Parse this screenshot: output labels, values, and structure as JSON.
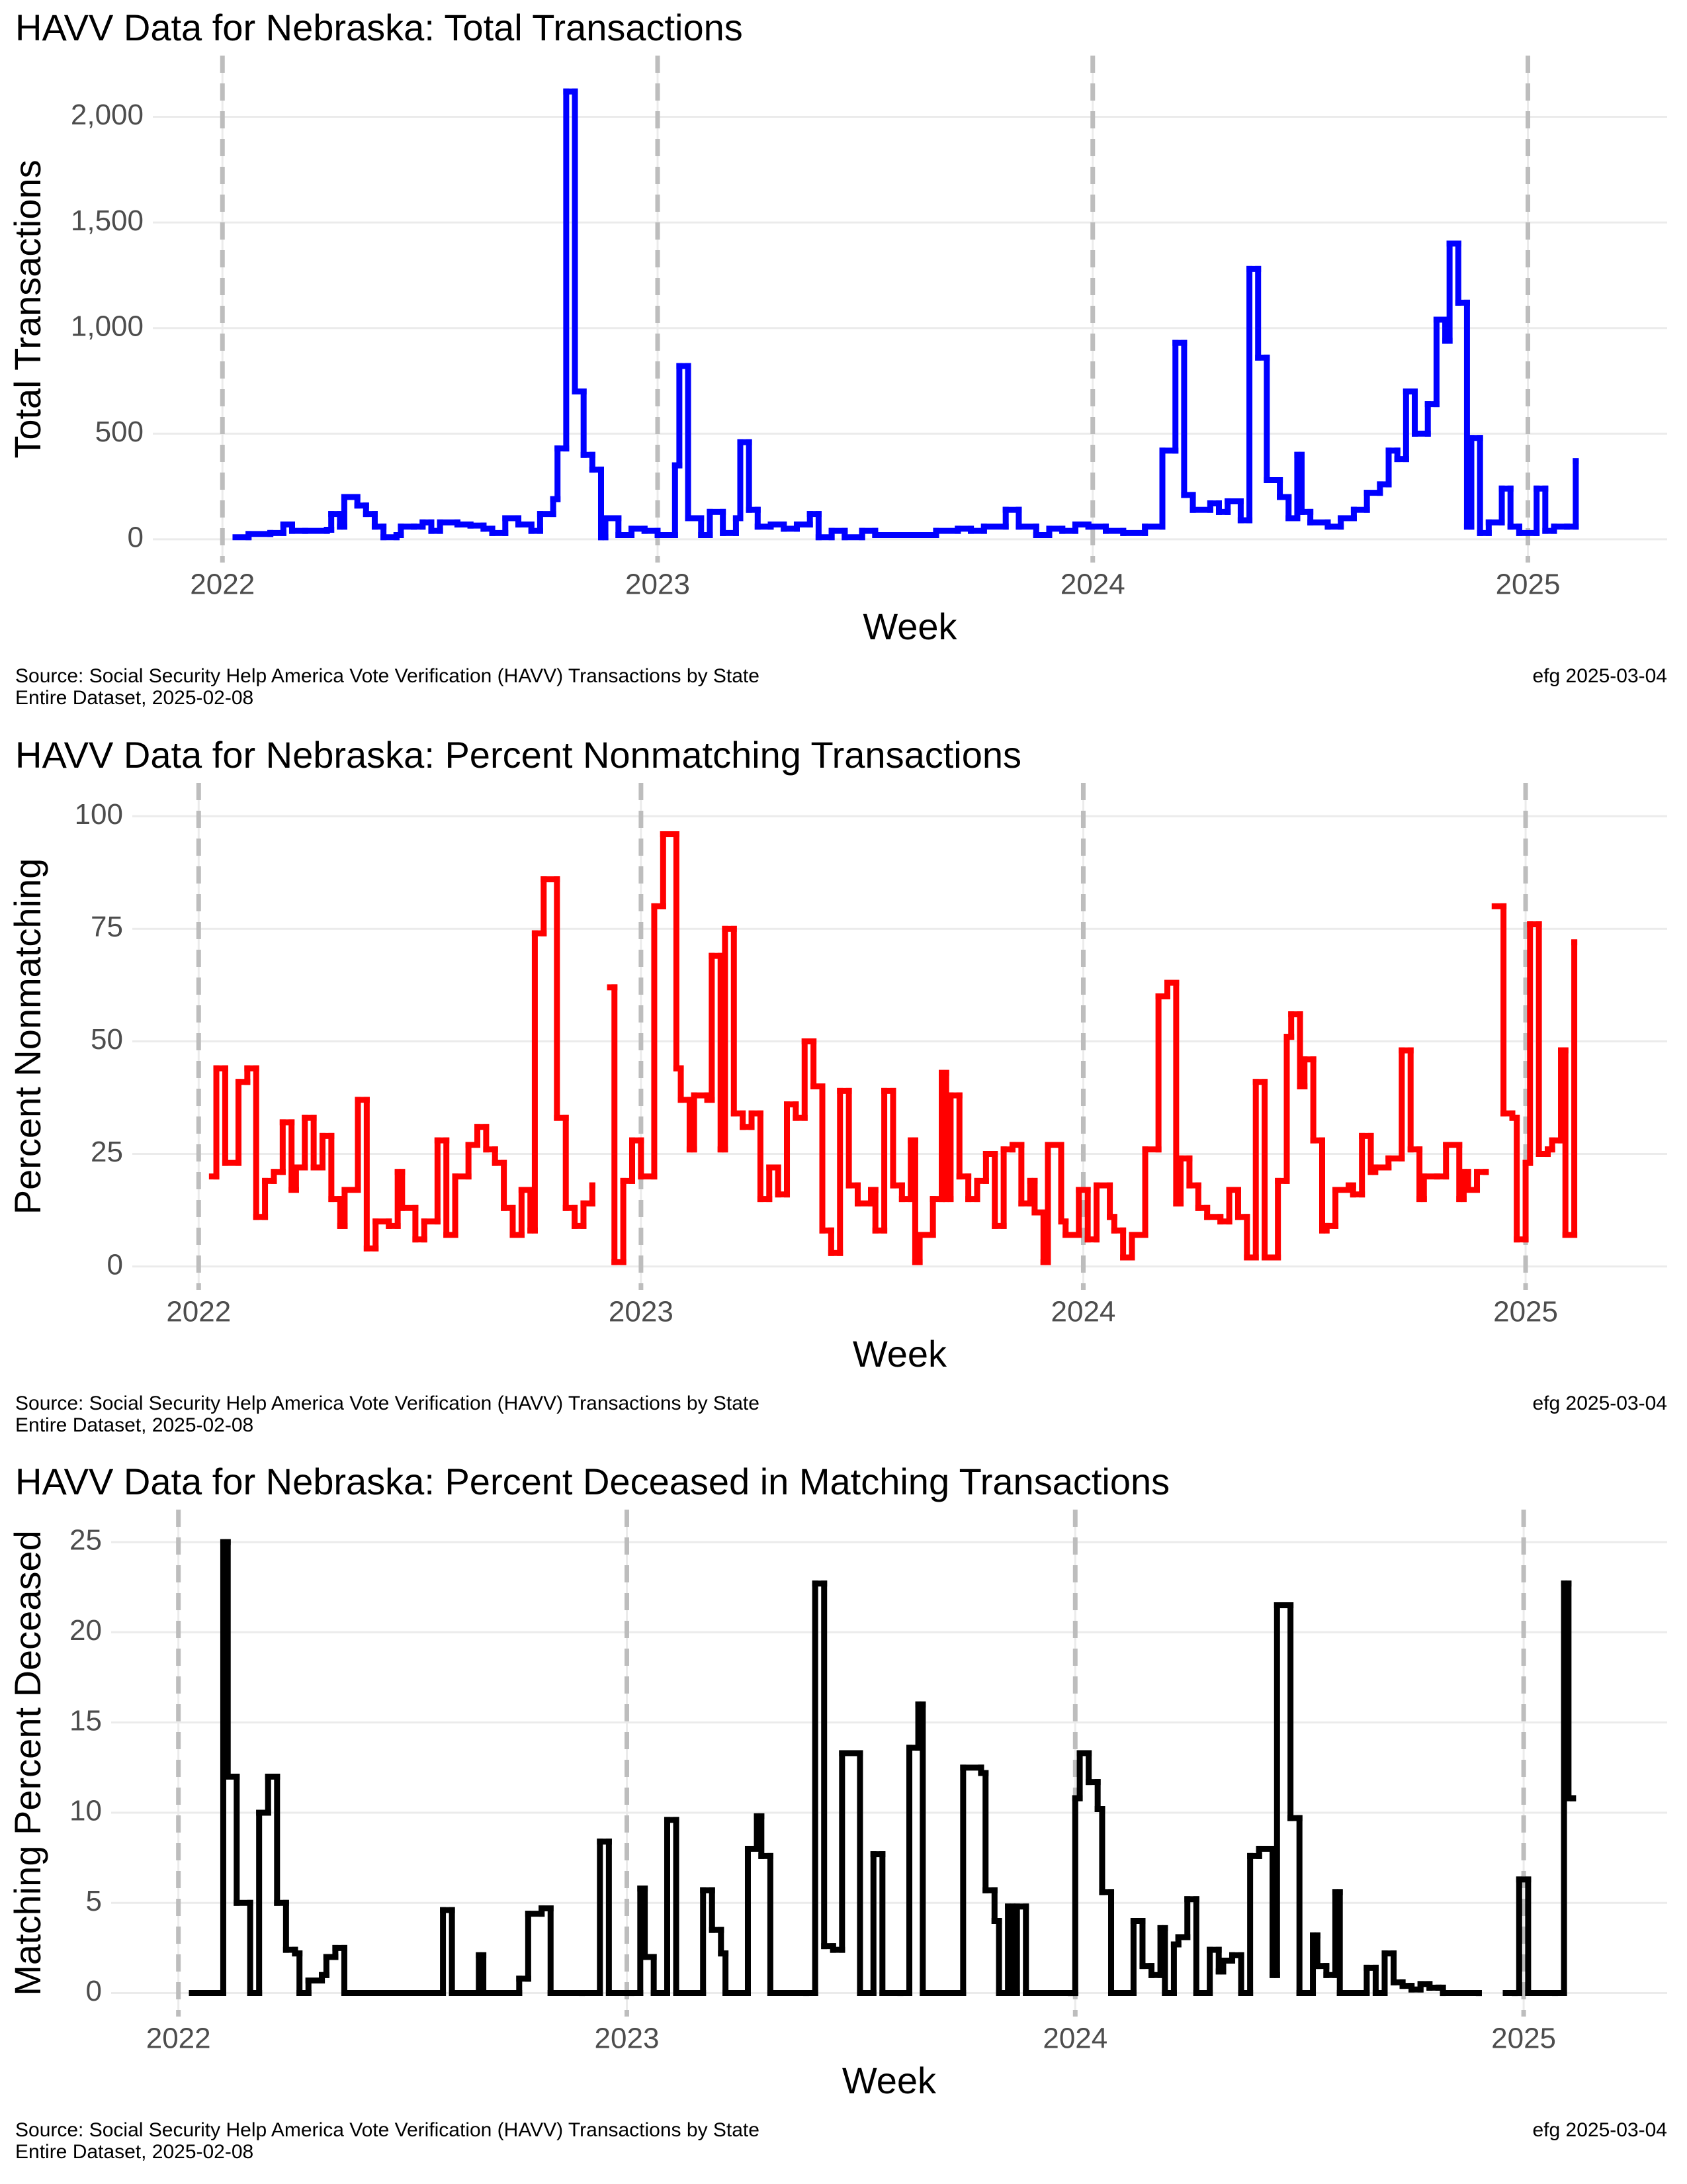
{
  "chart_data": [
    {
      "type": "step",
      "title": "HAVV Data for Nebraska:  Total Transactions",
      "xlabel": "Week",
      "ylabel": "Total Transactions",
      "source": [
        "Source:  Social Security Help America Vote Verification (HAVV) Transactions by State",
        "Entire Dataset, 2025-02-08"
      ],
      "credit": "efg 2025-03-04",
      "color": "#0000ff",
      "grid": true,
      "xlim": [
        2021.84,
        2025.32
      ],
      "xticks": [
        2022,
        2023,
        2024,
        2025
      ],
      "ylim": [
        -110,
        2290
      ],
      "yticks": [
        0,
        500,
        {
          "value": 1000,
          "label": "1,000"
        },
        {
          "value": 1500,
          "label": "1,500"
        },
        {
          "value": 2000,
          "label": "2,000"
        }
      ],
      "x": [
        2022.03,
        2022.06,
        2022.11,
        2022.14,
        2022.16,
        2022.19,
        2022.24,
        2022.25,
        2022.27,
        2022.28,
        2022.31,
        2022.33,
        2022.35,
        2022.37,
        2022.4,
        2022.41,
        2022.44,
        2022.46,
        2022.48,
        2022.5,
        2022.54,
        2022.57,
        2022.6,
        2022.62,
        2022.65,
        2022.68,
        2022.71,
        2022.73,
        2022.76,
        2022.77,
        2022.79,
        2022.81,
        2022.83,
        2022.85,
        2022.87,
        2022.88,
        2022.91,
        2022.94,
        2022.97,
        2023.0,
        2023.04,
        2023.05,
        2023.07,
        2023.1,
        2023.12,
        2023.15,
        2023.18,
        2023.19,
        2023.21,
        2023.23,
        2023.26,
        2023.29,
        2023.32,
        2023.35,
        2023.37,
        2023.4,
        2023.43,
        2023.47,
        2023.5,
        2023.55,
        2023.59,
        2023.64,
        2023.69,
        2023.72,
        2023.75,
        2023.8,
        2023.83,
        2023.87,
        2023.9,
        2023.93,
        2023.96,
        2023.99,
        2024.03,
        2024.07,
        2024.12,
        2024.16,
        2024.19,
        2024.21,
        2024.23,
        2024.27,
        2024.29,
        2024.31,
        2024.34,
        2024.36,
        2024.38,
        2024.4,
        2024.43,
        2024.45,
        2024.47,
        2024.48,
        2024.5,
        2024.54,
        2024.57,
        2024.6,
        2024.63,
        2024.66,
        2024.68,
        2024.7,
        2024.72,
        2024.74,
        2024.77,
        2024.79,
        2024.81,
        2024.82,
        2024.84,
        2024.86,
        2024.87,
        2024.89,
        2024.91,
        2024.94,
        2024.96,
        2024.98,
        2025.02,
        2025.04,
        2025.06,
        2025.09,
        2025.11
      ],
      "values": [
        10,
        25,
        30,
        70,
        40,
        40,
        45,
        120,
        60,
        200,
        160,
        120,
        60,
        10,
        20,
        60,
        60,
        80,
        40,
        80,
        70,
        65,
        50,
        30,
        100,
        70,
        40,
        120,
        190,
        430,
        2120,
        700,
        400,
        330,
        10,
        100,
        20,
        50,
        40,
        20,
        350,
        820,
        100,
        20,
        130,
        30,
        100,
        460,
        140,
        60,
        70,
        50,
        70,
        120,
        10,
        40,
        10,
        40,
        20,
        20,
        20,
        40,
        50,
        40,
        60,
        140,
        60,
        20,
        50,
        40,
        70,
        60,
        40,
        30,
        60,
        420,
        930,
        210,
        140,
        170,
        130,
        180,
        90,
        1280,
        860,
        280,
        200,
        100,
        400,
        130,
        80,
        60,
        100,
        140,
        220,
        260,
        420,
        380,
        700,
        500,
        640,
        1040,
        940,
        1400,
        1120,
        60,
        480,
        30,
        80,
        240,
        60,
        30,
        240,
        40,
        60,
        60,
        370
      ]
    },
    {
      "type": "step",
      "title": "HAVV Data for Nebraska:  Percent Nonmatching Transactions",
      "xlabel": "Week",
      "ylabel": "Percent Nonmatching",
      "source": [
        "Source:  Social Security Help America Vote Verification (HAVV) Transactions by State",
        "Entire Dataset, 2025-02-08"
      ],
      "credit": "efg 2025-03-04",
      "color": "#ff0000",
      "grid": true,
      "xlim": [
        2021.85,
        2025.32
      ],
      "xticks": [
        2022,
        2023,
        2024,
        2025
      ],
      "ylim": [
        -5.2,
        107.4
      ],
      "yticks": [
        0,
        25,
        50,
        75,
        100
      ],
      "x": [
        2022.03,
        2022.04,
        2022.06,
        2022.09,
        2022.11,
        2022.13,
        2022.15,
        2022.17,
        2022.19,
        2022.21,
        2022.22,
        2022.24,
        2022.26,
        2022.28,
        2022.3,
        2022.32,
        2022.33,
        2022.36,
        2022.38,
        2022.4,
        2022.43,
        2022.45,
        2022.46,
        2022.49,
        2022.51,
        2022.54,
        2022.56,
        2022.58,
        2022.61,
        2022.63,
        2022.65,
        2022.67,
        2022.69,
        2022.71,
        2022.73,
        2022.75,
        2022.76,
        2022.78,
        2022.81,
        2022.83,
        2022.85,
        2022.87,
        2022.89,
        2022.9,
        2022.93,
        2022.94,
        2022.96,
        2022.98,
        2023.0,
        2023.03,
        2023.05,
        2023.08,
        2023.09,
        2023.11,
        2023.12,
        2023.15,
        2023.16,
        2023.18,
        2023.19,
        2023.21,
        2023.23,
        2023.25,
        2023.27,
        2023.29,
        2023.31,
        2023.33,
        2023.35,
        2023.37,
        2023.39,
        2023.41,
        2023.43,
        2023.45,
        2023.47,
        2023.49,
        2023.52,
        2023.53,
        2023.55,
        2023.57,
        2023.59,
        2023.61,
        2023.62,
        2023.63,
        2023.66,
        2023.68,
        2023.69,
        2023.7,
        2023.72,
        2023.74,
        2023.76,
        2023.78,
        2023.8,
        2023.82,
        2023.84,
        2023.86,
        2023.88,
        2023.89,
        2023.91,
        2023.92,
        2023.95,
        2023.96,
        2023.99,
        2024.01,
        2024.03,
        2024.06,
        2024.07,
        2024.09,
        2024.11,
        2024.14,
        2024.17,
        2024.19,
        2024.21,
        2024.22,
        2024.24,
        2024.26,
        2024.28,
        2024.31,
        2024.33,
        2024.35,
        2024.37,
        2024.39,
        2024.41,
        2024.44,
        2024.46,
        2024.47,
        2024.49,
        2024.5,
        2024.52,
        2024.54,
        2024.55,
        2024.57,
        2024.6,
        2024.61,
        2024.63,
        2024.65,
        2024.66,
        2024.69,
        2024.72,
        2024.74,
        2024.76,
        2024.77,
        2024.8,
        2024.82,
        2024.85,
        2024.86,
        2024.87,
        2024.89,
        2024.91,
        2024.92,
        2024.93,
        2024.95,
        2024.97,
        2024.98,
        2025.0,
        2025.01,
        2025.03,
        2025.05,
        2025.06,
        2025.08,
        2025.09,
        2025.11
      ],
      "values": [
        20,
        44,
        23,
        41,
        44,
        11,
        19,
        21,
        32,
        17,
        22,
        33,
        22,
        29,
        15,
        9,
        17,
        37,
        4,
        10,
        9,
        21,
        13,
        6,
        10,
        28,
        7,
        20,
        27,
        31,
        26,
        23,
        13,
        7,
        17,
        8,
        74,
        86,
        33,
        13,
        9,
        14,
        18,
        null,
        62,
        1,
        19,
        28,
        20,
        80,
        96,
        44,
        37,
        26,
        38,
        37,
        69,
        26,
        75,
        34,
        31,
        34,
        15,
        22,
        16,
        36,
        33,
        50,
        40,
        8,
        3,
        39,
        18,
        14,
        17,
        8,
        39,
        18,
        15,
        28,
        1,
        7,
        15,
        43,
        15,
        38,
        20,
        15,
        19,
        25,
        9,
        26,
        27,
        14,
        19,
        12,
        1,
        27,
        10,
        7,
        17,
        6,
        18,
        11,
        8,
        2,
        7,
        26,
        60,
        63,
        14,
        24,
        18,
        13,
        11,
        10,
        17,
        11,
        2,
        41,
        2,
        19,
        51,
        56,
        40,
        46,
        28,
        8,
        9,
        17,
        18,
        16,
        29,
        21,
        22,
        24,
        48,
        26,
        15,
        20,
        20,
        27,
        15,
        21,
        17,
        21,
        21,
        null,
        80,
        34,
        33,
        6,
        23,
        76,
        25,
        26,
        28,
        48,
        7,
        72
      ]
    },
    {
      "type": "step",
      "title": "HAVV Data for Nebraska:  Percent Deceased in Matching Transactions",
      "xlabel": "Week",
      "ylabel": "Matching Percent Deceased",
      "source": [
        "Source:  Social Security Help America Vote Verification (HAVV) Transactions by State",
        "Entire Dataset, 2025-02-08"
      ],
      "credit": "efg 2025-03-04",
      "color": "#000000",
      "grid": true,
      "xlim": [
        2021.85,
        2025.32
      ],
      "xticks": [
        2022,
        2023,
        2024,
        2025
      ],
      "ylim": [
        -1.3,
        26.8
      ],
      "yticks": [
        0,
        5,
        10,
        15,
        20,
        25
      ],
      "x": [
        2022.03,
        2022.1,
        2022.11,
        2022.13,
        2022.16,
        2022.18,
        2022.2,
        2022.22,
        2022.24,
        2022.26,
        2022.27,
        2022.29,
        2022.32,
        2022.33,
        2022.35,
        2022.37,
        2022.59,
        2022.61,
        2022.67,
        2022.68,
        2022.76,
        2022.78,
        2022.81,
        2022.83,
        2022.9,
        2022.94,
        2022.96,
        2023.01,
        2023.03,
        2023.04,
        2023.06,
        2023.09,
        2023.11,
        2023.17,
        2023.19,
        2023.21,
        2023.22,
        2023.27,
        2023.29,
        2023.3,
        2023.32,
        2023.4,
        2023.42,
        2023.44,
        2023.46,
        2023.48,
        2023.52,
        2023.55,
        2023.57,
        2023.61,
        2023.63,
        2023.65,
        2023.66,
        2023.75,
        2023.79,
        2023.8,
        2023.82,
        2023.83,
        2023.85,
        2023.86,
        2023.87,
        2023.89,
        2023.99,
        2024.0,
        2024.01,
        2024.03,
        2024.05,
        2024.06,
        2024.08,
        2024.13,
        2024.15,
        2024.17,
        2024.19,
        2024.2,
        2024.22,
        2024.23,
        2024.25,
        2024.27,
        2024.3,
        2024.32,
        2024.33,
        2024.35,
        2024.37,
        2024.39,
        2024.41,
        2024.44,
        2024.45,
        2024.48,
        2024.5,
        2024.53,
        2024.54,
        2024.56,
        2024.58,
        2024.59,
        2024.65,
        2024.67,
        2024.69,
        2024.71,
        2024.73,
        2024.75,
        2024.77,
        2024.79,
        2024.81,
        2024.82,
        2024.9,
        2024.92,
        2024.96,
        2024.98,
        2024.99,
        2025.01,
        2025.07,
        2025.09,
        2025.1,
        2025.11
      ],
      "values": [
        0,
        25,
        12,
        5,
        0,
        10,
        12,
        5,
        2.4,
        2.2,
        0,
        0.7,
        1,
        2,
        2.5,
        0,
        4.6,
        0,
        2.1,
        0,
        0.8,
        4.4,
        4.7,
        0,
        0,
        8.4,
        0,
        0,
        5.8,
        2,
        0,
        9.6,
        0,
        5.7,
        3.5,
        2.2,
        0,
        8,
        9.8,
        7.6,
        0,
        0,
        22.7,
        2.6,
        2.4,
        13.3,
        0,
        7.7,
        0,
        0,
        13.6,
        16,
        0,
        12.5,
        12.2,
        5.7,
        4,
        0,
        4.8,
        0,
        4.8,
        0,
        0,
        10.8,
        13.3,
        11.7,
        10.2,
        5.6,
        0,
        4,
        1.5,
        1,
        3.6,
        0,
        2.7,
        3.1,
        5.2,
        0,
        2.4,
        1.2,
        1.8,
        2.1,
        0,
        7.6,
        8,
        1,
        21.5,
        9.7,
        0,
        3.2,
        1.5,
        1,
        5.6,
        0,
        1.4,
        0,
        2.2,
        0.6,
        0.4,
        0.2,
        0.5,
        0.3,
        0.3,
        0,
        0,
        null,
        0,
        0,
        6.3,
        0,
        0,
        22.7,
        10.8,
        10.8
      ]
    }
  ]
}
